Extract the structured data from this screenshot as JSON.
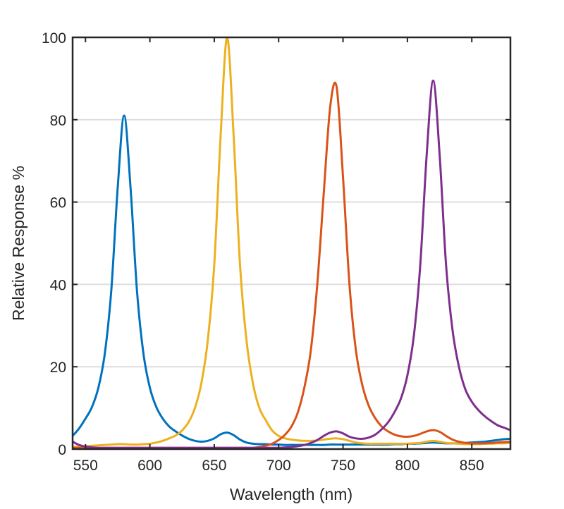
{
  "chart_data": {
    "type": "line",
    "title": "",
    "xlabel": "Wavelength (nm)",
    "ylabel": "Relative Response %",
    "xlim": [
      540,
      880
    ],
    "ylim": [
      0,
      100
    ],
    "xticks": [
      550,
      600,
      650,
      700,
      750,
      800,
      850
    ],
    "yticks": [
      0,
      20,
      40,
      60,
      80,
      100
    ],
    "grid": "horizontal",
    "legend": "none",
    "x": [
      540,
      545,
      550,
      555,
      560,
      565,
      570,
      575,
      580,
      585,
      590,
      595,
      600,
      605,
      610,
      615,
      620,
      625,
      630,
      635,
      640,
      645,
      650,
      655,
      660,
      665,
      670,
      675,
      680,
      685,
      690,
      695,
      700,
      705,
      710,
      715,
      720,
      725,
      730,
      735,
      740,
      745,
      750,
      755,
      760,
      765,
      770,
      775,
      780,
      785,
      790,
      795,
      800,
      805,
      810,
      815,
      820,
      825,
      830,
      835,
      840,
      845,
      850,
      855,
      860,
      865,
      870,
      875,
      880
    ],
    "series": [
      {
        "color": "#0072BD",
        "values": [
          3.2,
          5.0,
          7.4,
          10.2,
          14.9,
          23.2,
          38.4,
          63.4,
          81,
          63.4,
          38.4,
          23.2,
          14.9,
          10.2,
          7.4,
          5.5,
          4.3,
          3.3,
          2.5,
          2.0,
          1.8,
          2.0,
          2.6,
          3.6,
          4.0,
          3.4,
          2.3,
          1.6,
          1.3,
          1.2,
          1.2,
          1.1,
          1.1,
          1.0,
          1.0,
          1.0,
          1.0,
          1.0,
          1.0,
          1.0,
          1.1,
          1.1,
          1.1,
          1.1,
          1.1,
          1.1,
          1.1,
          1.1,
          1.1,
          1.1,
          1.2,
          1.2,
          1.3,
          1.3,
          1.4,
          1.5,
          1.6,
          1.5,
          1.4,
          1.4,
          1.4,
          1.5,
          1.6,
          1.7,
          1.8,
          2.0,
          2.2,
          2.4,
          2.5
        ]
      },
      {
        "color": "#EDB120",
        "values": [
          0.5,
          0.6,
          0.7,
          0.8,
          0.9,
          1.0,
          1.1,
          1.2,
          1.2,
          1.1,
          1.1,
          1.2,
          1.3,
          1.6,
          2.0,
          2.6,
          3.3,
          4.5,
          6.5,
          10.0,
          16.0,
          26.5,
          44.8,
          76.4,
          100,
          76.4,
          44.8,
          26.5,
          16.0,
          10.0,
          7.0,
          4.5,
          3.2,
          2.6,
          2.3,
          2.1,
          2.0,
          2.0,
          2.1,
          2.3,
          2.5,
          2.6,
          2.4,
          2.0,
          1.6,
          1.4,
          1.3,
          1.3,
          1.3,
          1.3,
          1.3,
          1.3,
          1.3,
          1.4,
          1.5,
          1.8,
          2.0,
          1.8,
          1.5,
          1.4,
          1.3,
          1.2,
          1.2,
          1.2,
          1.3,
          1.3,
          1.4,
          1.4,
          1.5
        ]
      },
      {
        "color": "#D95319",
        "values": [
          0.3,
          0.3,
          0.3,
          0.3,
          0.3,
          0.3,
          0.3,
          0.3,
          0.3,
          0.3,
          0.3,
          0.3,
          0.3,
          0.3,
          0.3,
          0.3,
          0.3,
          0.3,
          0.3,
          0.3,
          0.3,
          0.3,
          0.3,
          0.3,
          0.3,
          0.3,
          0.3,
          0.3,
          0.3,
          0.5,
          0.8,
          1.3,
          2.2,
          3.5,
          5.5,
          9.0,
          15.0,
          24.0,
          40.0,
          62.0,
          83.0,
          88.0,
          66.0,
          40.0,
          24.0,
          15.5,
          10.5,
          7.5,
          5.5,
          4.3,
          3.5,
          3.1,
          3.0,
          3.2,
          3.7,
          4.3,
          4.6,
          4.2,
          3.2,
          2.3,
          1.8,
          1.5,
          1.4,
          1.4,
          1.4,
          1.5,
          1.6,
          1.7,
          1.8
        ]
      },
      {
        "color": "#7E2F8E",
        "values": [
          1.8,
          1.0,
          0.6,
          0.4,
          0.3,
          0.3,
          0.3,
          0.3,
          0.3,
          0.3,
          0.3,
          0.3,
          0.3,
          0.3,
          0.3,
          0.3,
          0.3,
          0.3,
          0.3,
          0.3,
          0.3,
          0.3,
          0.3,
          0.3,
          0.3,
          0.3,
          0.3,
          0.3,
          0.3,
          0.3,
          0.3,
          0.3,
          0.3,
          0.4,
          0.5,
          0.7,
          1.0,
          1.5,
          2.2,
          3.2,
          4.0,
          4.3,
          3.8,
          3.0,
          2.6,
          2.5,
          2.8,
          3.5,
          4.8,
          6.5,
          9.0,
          12.3,
          17.9,
          27.5,
          44.8,
          71.6,
          89.5,
          71.6,
          44.8,
          29.0,
          20.0,
          14.5,
          11.5,
          9.5,
          8.0,
          6.8,
          5.8,
          5.2,
          4.6
        ]
      }
    ]
  }
}
